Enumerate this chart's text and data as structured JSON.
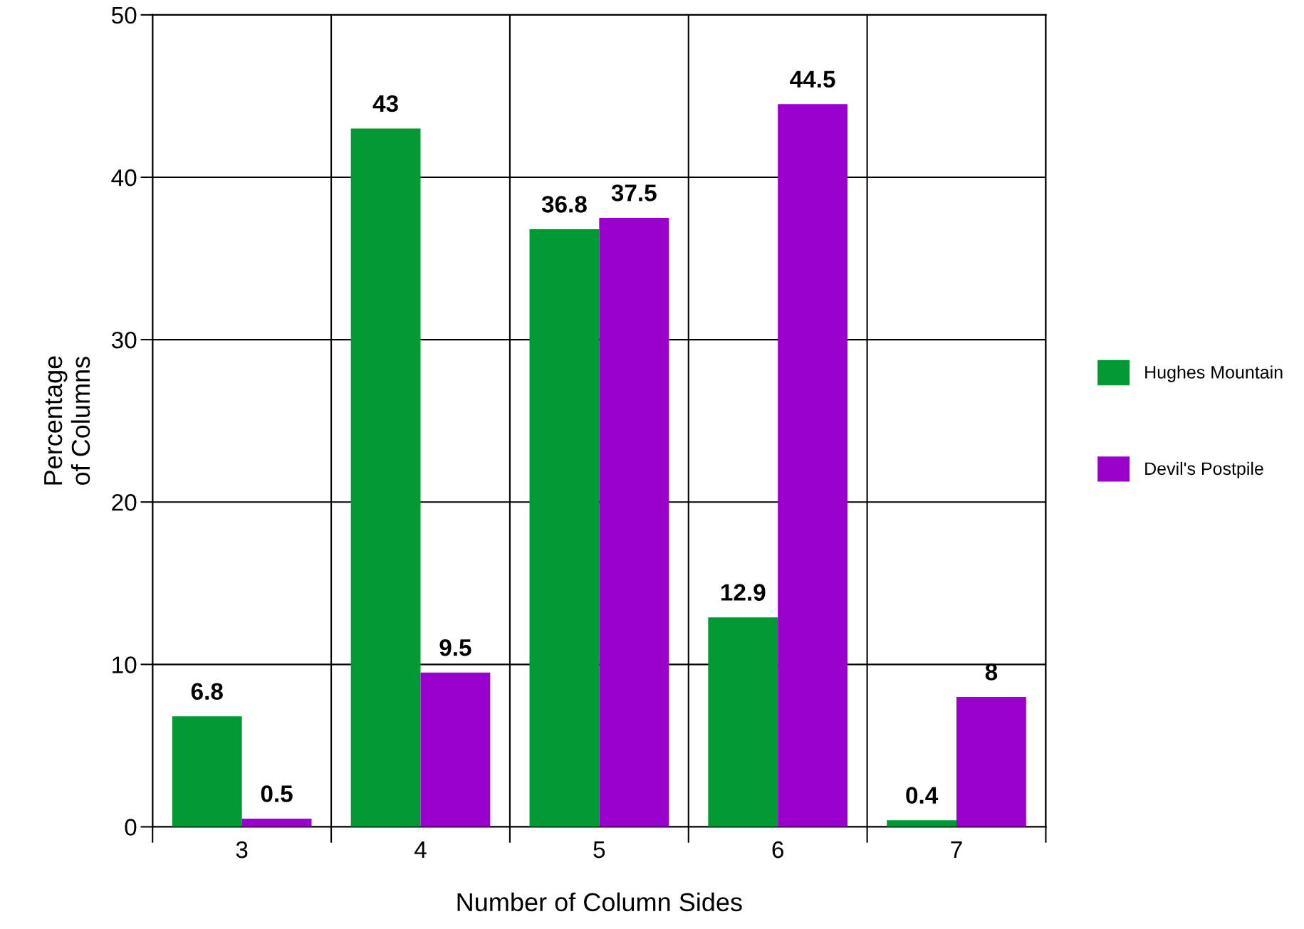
{
  "chart_data": {
    "type": "bar",
    "xlabel": "Number of Column Sides",
    "ylabel": "Percentage\nof Columns",
    "categories": [
      "3",
      "4",
      "5",
      "6",
      "7"
    ],
    "series": [
      {
        "name": "Hughes Mountain",
        "color": "#009933",
        "values": [
          6.8,
          43,
          36.8,
          12.9,
          0.4
        ]
      },
      {
        "name": "Devil's Postpile",
        "color": "#9900cc",
        "values": [
          0.5,
          9.5,
          37.5,
          44.5,
          8
        ]
      }
    ],
    "ylim": [
      0,
      50
    ],
    "yticks": [
      0,
      10,
      20,
      30,
      40,
      50
    ],
    "grid": true,
    "legend": "right",
    "data_labels": true
  }
}
